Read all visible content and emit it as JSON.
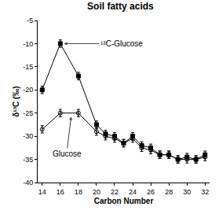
{
  "chart_data": {
    "type": "line",
    "title": "Soil fatty acids",
    "x_label": "Carbon Number",
    "y_label": "δ¹³C (‰)",
    "x": [
      14,
      16,
      18,
      20,
      21,
      22,
      23,
      24,
      25,
      26,
      27,
      28,
      29,
      30,
      31,
      32
    ],
    "series": [
      {
        "name": "¹³C-Glucose",
        "color": "#000000",
        "marker": "square",
        "values": [
          -20,
          -10,
          -17,
          -27.5,
          -29.5,
          -30,
          -31.5,
          -30,
          -32,
          -32.5,
          -34,
          -34,
          -35,
          -34.5,
          -35,
          -34
        ],
        "errors": [
          0.8,
          0.8,
          0.8,
          0.8,
          0.8,
          0.8,
          0.8,
          0.8,
          0.8,
          0.8,
          0.8,
          0.8,
          0.8,
          0.8,
          0.8,
          0.8
        ]
      },
      {
        "name": "Glucose",
        "color": "#000000",
        "marker": "circle-open",
        "values": [
          -28.5,
          -25,
          -25,
          -29,
          -30,
          -30.5,
          -31.5,
          -30.5,
          -32.5,
          -33,
          -34,
          -34,
          -35,
          -35,
          -35,
          -34.5
        ],
        "errors": [
          0.8,
          0.8,
          0.8,
          0.8,
          0.8,
          0.8,
          0.8,
          0.8,
          0.8,
          0.8,
          0.8,
          0.8,
          0.8,
          0.8,
          0.8,
          0.8
        ]
      }
    ],
    "xlim": [
      13.5,
      32.5
    ],
    "xticks": [
      14,
      16,
      18,
      20,
      22,
      24,
      26,
      28,
      30,
      32
    ],
    "ylim": [
      -40,
      -5
    ],
    "yticks": [
      -40,
      -35,
      -30,
      -25,
      -20,
      -15,
      -10,
      -5
    ],
    "grid": false
  }
}
